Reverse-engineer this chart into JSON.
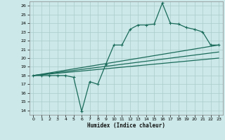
{
  "xlabel": "Humidex (Indice chaleur)",
  "bg_color": "#cce8e8",
  "grid_color": "#aacccc",
  "line_color": "#1a6b5a",
  "xlim": [
    -0.5,
    23.5
  ],
  "ylim": [
    13.5,
    26.5
  ],
  "xticks": [
    0,
    1,
    2,
    3,
    4,
    5,
    6,
    7,
    8,
    9,
    10,
    11,
    12,
    13,
    14,
    15,
    16,
    17,
    18,
    19,
    20,
    21,
    22,
    23
  ],
  "yticks": [
    14,
    15,
    16,
    17,
    18,
    19,
    20,
    21,
    22,
    23,
    24,
    25,
    26
  ],
  "curve1_x": [
    0,
    1,
    2,
    3,
    4,
    5,
    6,
    7,
    8,
    9,
    10,
    11,
    12,
    13,
    14,
    15,
    16,
    17,
    18,
    19,
    20,
    21,
    22,
    23
  ],
  "curve1_y": [
    18.0,
    18.0,
    18.0,
    18.0,
    18.0,
    17.8,
    13.9,
    17.3,
    17.0,
    19.3,
    21.5,
    21.5,
    23.3,
    23.8,
    23.8,
    23.9,
    26.3,
    24.0,
    23.9,
    23.5,
    23.3,
    23.0,
    21.5,
    21.5
  ],
  "line1_x": [
    0,
    23
  ],
  "line1_y": [
    18.0,
    21.5
  ],
  "line2_x": [
    0,
    23
  ],
  "line2_y": [
    18.0,
    20.7
  ],
  "line3_x": [
    0,
    23
  ],
  "line3_y": [
    18.0,
    20.0
  ]
}
